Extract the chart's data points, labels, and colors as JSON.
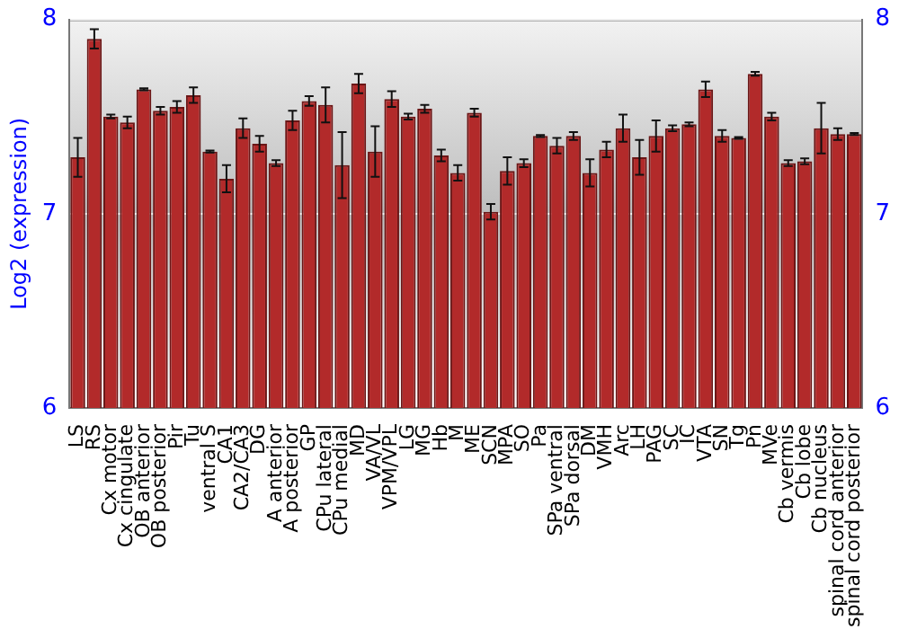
{
  "chart_data": {
    "type": "bar",
    "ylabel": "Log2 (expression)",
    "categories": [
      "LS",
      "RS",
      "Cx motor",
      "Cx cingulate",
      "OB anterior",
      "OB posterior",
      "Pir",
      "Tu",
      "ventral S",
      "CA1",
      "CA2/CA3",
      "DG",
      "A anterior",
      "A posterior",
      "GP",
      "CPu lateral",
      "CPu medial",
      "MD",
      "VA/VL",
      "VPM/VPL",
      "LG",
      "MG",
      "Hb",
      "M",
      "ME",
      "SCN",
      "MPA",
      "SO",
      "Pa",
      "SPa ventral",
      "SPa dorsal",
      "DM",
      "VMH",
      "Arc",
      "LH",
      "PAG",
      "SC",
      "IC",
      "VTA",
      "SN",
      "Tg",
      "Pn",
      "MVe",
      "Cb vermis",
      "Cb lobe",
      "Cb nucleus",
      "spinal cord anterior",
      "spinal cord posterior"
    ],
    "values": [
      7.29,
      7.9,
      7.5,
      7.47,
      7.64,
      7.53,
      7.55,
      7.61,
      7.32,
      7.18,
      7.44,
      7.36,
      7.26,
      7.48,
      7.58,
      7.56,
      7.25,
      7.67,
      7.32,
      7.59,
      7.5,
      7.54,
      7.3,
      7.21,
      7.52,
      7.01,
      7.22,
      7.26,
      7.4,
      7.35,
      7.4,
      7.21,
      7.33,
      7.44,
      7.29,
      7.4,
      7.44,
      7.46,
      7.64,
      7.4,
      7.39,
      7.72,
      7.5,
      7.26,
      7.27,
      7.44,
      7.41,
      7.41
    ],
    "errors": [
      0.1,
      0.05,
      0.01,
      0.03,
      0.005,
      0.02,
      0.03,
      0.04,
      0.005,
      0.07,
      0.05,
      0.04,
      0.015,
      0.05,
      0.025,
      0.09,
      0.17,
      0.05,
      0.13,
      0.04,
      0.015,
      0.02,
      0.03,
      0.04,
      0.02,
      0.04,
      0.07,
      0.02,
      0.005,
      0.04,
      0.02,
      0.07,
      0.04,
      0.07,
      0.09,
      0.08,
      0.015,
      0.01,
      0.04,
      0.03,
      0.005,
      0.01,
      0.02,
      0.015,
      0.015,
      0.13,
      0.03,
      0.005
    ],
    "color": "#b22a2a",
    "ylim": [
      6,
      8
    ],
    "yticks": [
      6,
      7,
      8
    ],
    "y2lim": [
      6,
      8
    ],
    "y2ticks": [
      6,
      7,
      8
    ],
    "grid": "y",
    "legend": false
  }
}
